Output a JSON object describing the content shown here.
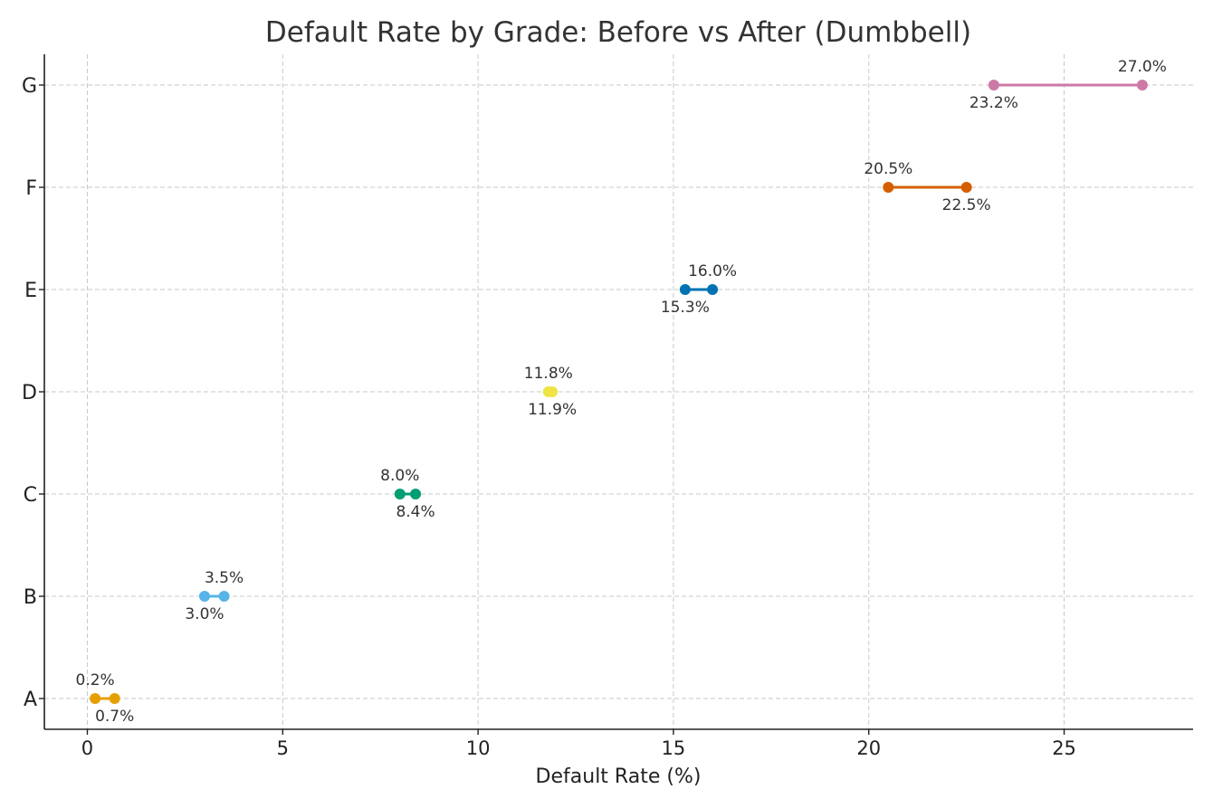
{
  "chart_data": {
    "type": "dumbbell",
    "title": "Default Rate by Grade: Before vs After (Dumbbell)",
    "xlabel": "Default Rate (%)",
    "ylabel": "",
    "xlim": [
      -1.1,
      28.3
    ],
    "xticks": [
      0,
      5,
      10,
      15,
      20,
      25
    ],
    "grid": true,
    "categories": [
      "A",
      "B",
      "C",
      "D",
      "E",
      "F",
      "G"
    ],
    "series": [
      {
        "values": [
          0.2,
          3.0,
          8.0,
          11.8,
          15.3,
          20.5,
          23.2
        ]
      },
      {
        "values": [
          0.7,
          3.5,
          8.4,
          11.9,
          16.0,
          22.5,
          27.0
        ]
      }
    ],
    "data_labels": [
      {
        "category": "A",
        "label_above": "0.2%",
        "label_below": "0.7%"
      },
      {
        "category": "B",
        "label_above": "3.5%",
        "label_below": "3.0%"
      },
      {
        "category": "C",
        "label_above": "8.0%",
        "label_below": "8.4%"
      },
      {
        "category": "D",
        "label_above": "11.8%",
        "label_below": "11.9%"
      },
      {
        "category": "E",
        "label_above": "16.0%",
        "label_below": "15.3%"
      },
      {
        "category": "F",
        "label_above": "20.5%",
        "label_below": "22.5%"
      },
      {
        "category": "G",
        "label_above": "27.0%",
        "label_below": "23.2%"
      }
    ],
    "colors": [
      "#E69F00",
      "#56B4E9",
      "#009E73",
      "#F0E442",
      "#0072B2",
      "#D55E00",
      "#CC79A7"
    ]
  }
}
